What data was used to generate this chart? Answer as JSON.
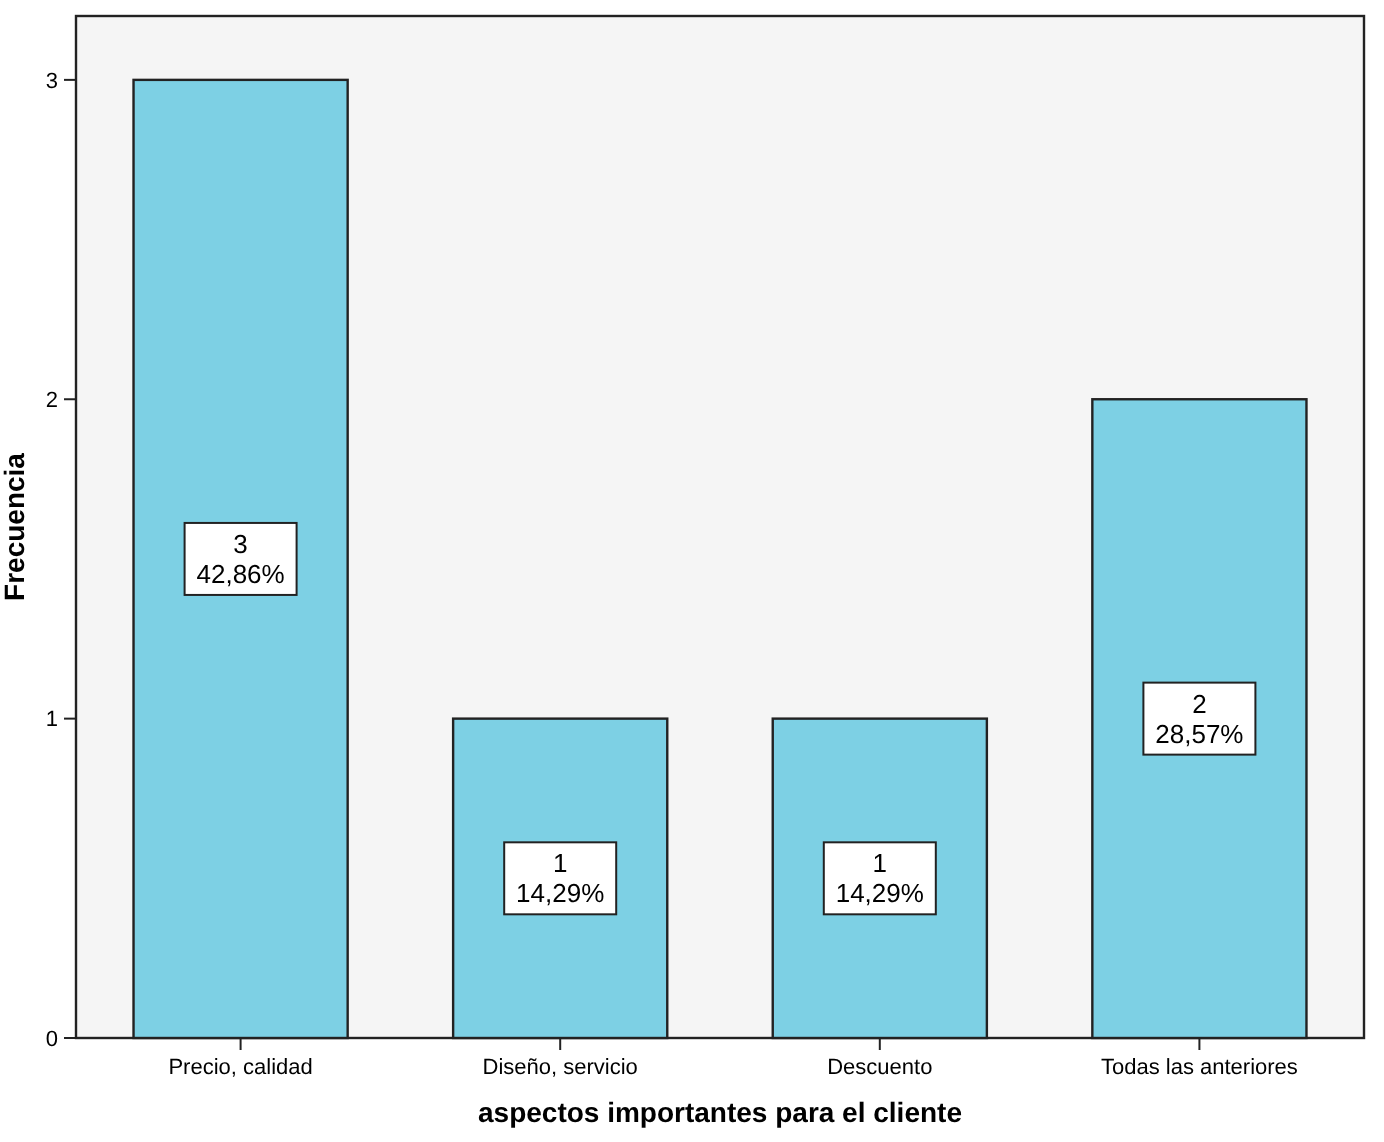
{
  "chart_data": {
    "type": "bar",
    "xlabel": "aspectos importantes para el cliente",
    "ylabel": "Frecuencia",
    "categories": [
      "Precio, calidad",
      "Diseño, servicio",
      "Descuento",
      "Todas las anteriores"
    ],
    "values": [
      3,
      1,
      1,
      2
    ],
    "value_labels": [
      "3\n42,86%",
      "1\n14,29%",
      "1\n14,29%",
      "2\n28,57%"
    ],
    "color": "#7dd0e4",
    "ylim": [
      0,
      3.2
    ],
    "yticks": [
      0,
      1,
      2,
      3
    ],
    "grid": false
  }
}
